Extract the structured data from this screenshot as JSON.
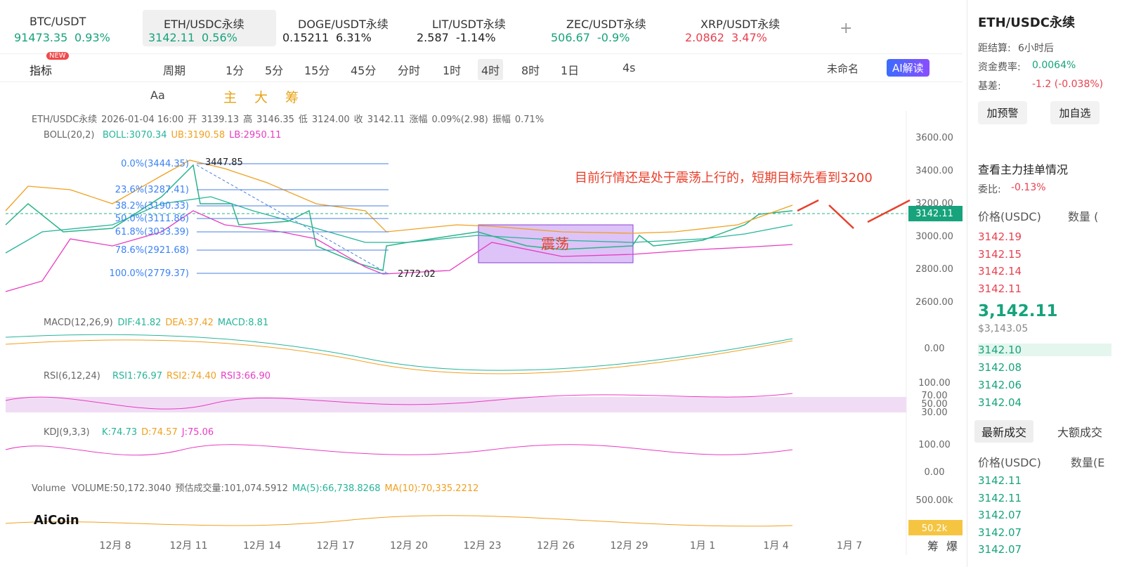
{
  "tabs": [
    {
      "pair": "BTC/USDT",
      "price": "91473.35",
      "change": "0.93%",
      "color": "#17a37b"
    },
    {
      "pair": "ETH/USDC永续",
      "price": "3142.11",
      "change": "0.56%",
      "color": "#17a37b"
    },
    {
      "pair": "DOGE/USDT永续",
      "price": "0.15211",
      "change": "6.31%",
      "color": "#222222"
    },
    {
      "pair": "LIT/USDT永续",
      "price": "2.587",
      "change": "-1.14%",
      "color": "#222222"
    },
    {
      "pair": "ZEC/USDT永续",
      "price": "506.67",
      "change": "-0.9%",
      "color": "#17a37b"
    },
    {
      "pair": "XRP/USDT永续",
      "price": "2.0862",
      "change": "3.47%",
      "color": "#e8414f"
    }
  ],
  "toolbar": {
    "indicator": "指标",
    "new_badge": "NEW",
    "period": "周期",
    "intervals": [
      "1分",
      "5分",
      "15分",
      "45分",
      "分时",
      "1时",
      "4时",
      "8时",
      "1日"
    ],
    "active_interval": 6,
    "refresh": "4s",
    "layout": "未命名",
    "ai": "AI解读"
  },
  "tools": {
    "text": "Aa",
    "main": "主",
    "big": "大",
    "chips": "筹"
  },
  "legend": {
    "pair": "ETH/USDC永续",
    "time": "2026-01-04 16:00",
    "items": [
      "开",
      "3139.13",
      "高",
      "3146.35",
      "低",
      "3124.00",
      "收",
      "3142.11",
      "涨幅",
      "0.09%(2.98)",
      "振幅",
      "0.71%"
    ]
  },
  "boll": {
    "name": "BOLL(20,2)",
    "values": [
      "BOLL:3070.34",
      "UB:3190.58",
      "LB:2950.11"
    ]
  },
  "price_axis": [
    "3600.00",
    "3400.00",
    "3200.00",
    "3000.00",
    "2800.00",
    "2600.00"
  ],
  "current_price": "3142.11",
  "fib": [
    "0.0%(3444.35)",
    "23.6%(3287.41)",
    "38.2%(3190.33)",
    "50.0%(3111.86)",
    "61.8%(3033.39)",
    "78.6%(2921.68)",
    "100.0%(2779.37)"
  ],
  "high_marker": "3447.85",
  "low_marker": "2772.02",
  "box_label": "震荡",
  "annotation": "目前行情还是处于震荡上行的，短期目标先看到3200",
  "macd": {
    "name": "MACD(12,26,9)",
    "values": [
      "DIF:41.82",
      "DEA:37.42",
      "MACD:8.81"
    ],
    "axis": [
      "0.00"
    ]
  },
  "rsi": {
    "name": "RSI(6,12,24)",
    "values": [
      "RSI1:76.97",
      "RSI2:74.40",
      "RSI3:66.90"
    ],
    "axis": [
      "100.00",
      "70.00",
      "50.00",
      "30.00"
    ]
  },
  "kdj": {
    "name": "KDJ(9,3,3)",
    "values": [
      "K:74.73",
      "D:74.57",
      "J:75.06"
    ],
    "axis": [
      "100.00",
      "0.00"
    ]
  },
  "volume": {
    "name": "Volume",
    "values": [
      "VOLUME:50,172.3040",
      "预估成交量:101,074.5912",
      "MA(5):66,738.8268",
      "MA(10):70,335.2212"
    ],
    "axis": [
      "500.00k"
    ],
    "current": "50.2k"
  },
  "logo": "AiCoin",
  "dates": [
    "12月 8",
    "12月 11",
    "12月 14",
    "12月 17",
    "12月 20",
    "12月 23",
    "12月 26",
    "12月 29",
    "1月 1",
    "1月 4",
    "1月 7"
  ],
  "corner": [
    "筹",
    "爆"
  ],
  "panel": {
    "title": "ETH/USDC永续",
    "info": [
      [
        "距结算:",
        "6小时后"
      ],
      [
        "资金费率:",
        "0.0064%"
      ],
      [
        "基差:",
        "-1.2 (-0.038%)"
      ]
    ],
    "buttons": [
      "加预警",
      "加自选"
    ],
    "depth_link": "查看主力挂单情况",
    "ratio": [
      "委比:",
      "-0.13%"
    ],
    "book_header": [
      "价格(USDC)",
      "数量 ("
    ],
    "asks": [
      "3142.19",
      "3142.15",
      "3142.14",
      "3142.11"
    ],
    "last": "3,142.11",
    "last_usd": "$3,143.05",
    "bids": [
      "3142.10",
      "3142.08",
      "3142.06",
      "3142.04"
    ],
    "trade_tabs": [
      "最新成交",
      "大额成交"
    ],
    "trade_header": [
      "价格(USDC)",
      "数量(E"
    ],
    "trades": [
      "3142.11",
      "3142.11",
      "3142.07",
      "3142.07",
      "3142.07"
    ]
  }
}
